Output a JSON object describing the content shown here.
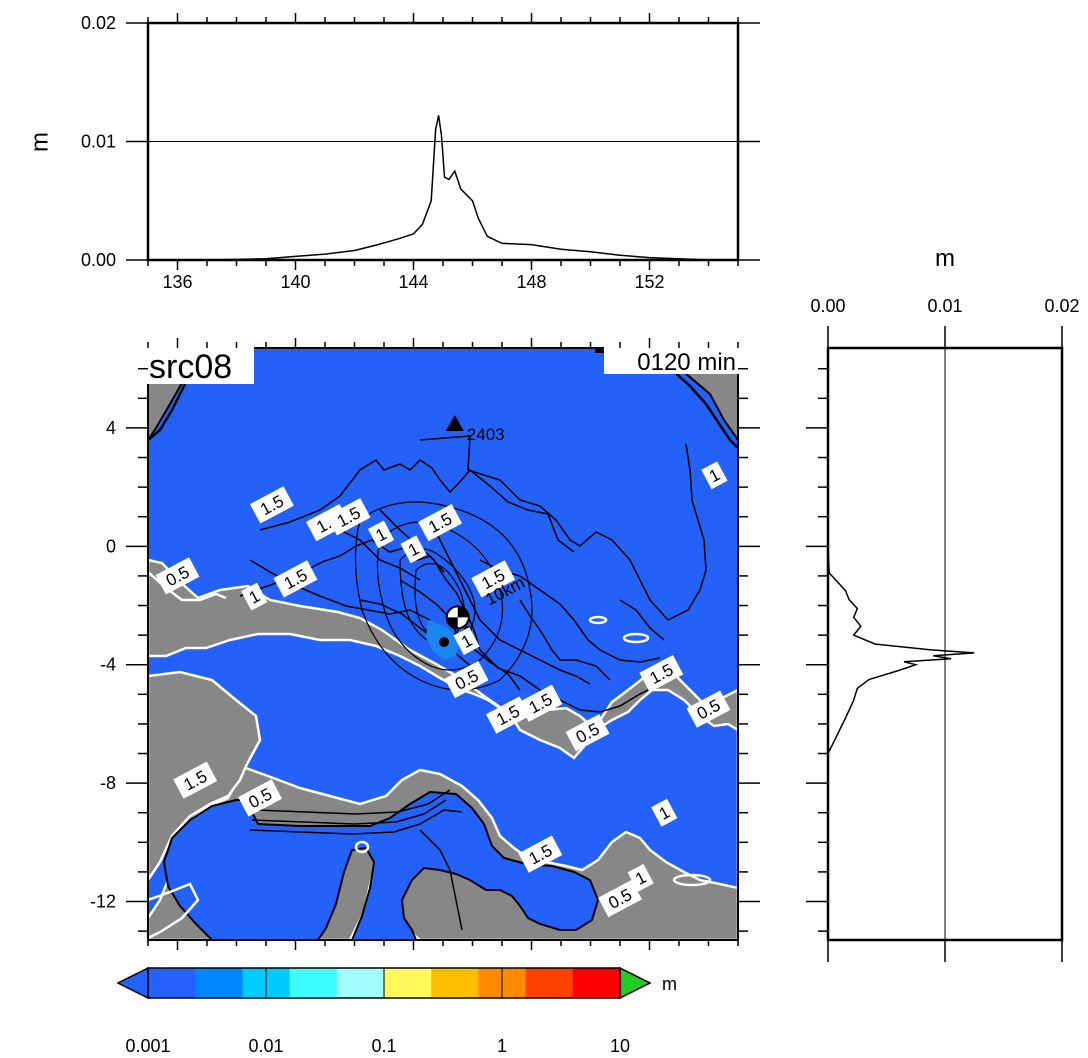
{
  "chart_data": [
    {
      "type": "line",
      "panel": "top-profile",
      "ylabel": "m",
      "xlim": [
        135,
        155
      ],
      "ylim": [
        0,
        0.02
      ],
      "x_ticks": [
        {
          "value": 136,
          "label": "136"
        },
        {
          "value": 140,
          "label": "140"
        },
        {
          "value": 144,
          "label": "144"
        },
        {
          "value": 148,
          "label": "148"
        },
        {
          "value": 152,
          "label": "152"
        }
      ],
      "y_ticks": [
        {
          "value": 0.0,
          "label": "0.00"
        },
        {
          "value": 0.01,
          "label": "0.01"
        },
        {
          "value": 0.02,
          "label": "0.02"
        }
      ],
      "gridline_y": 0.01,
      "series": [
        {
          "x": [
            135,
            137,
            139,
            140,
            141,
            142,
            142.8,
            143.5,
            144.0,
            144.3,
            144.6,
            144.75,
            144.85,
            144.95,
            145.05,
            145.2,
            145.4,
            145.6,
            145.8,
            146.0,
            146.2,
            146.5,
            147.0,
            148.0,
            149.0,
            150.0,
            151.0,
            152.0,
            153.0,
            154.0,
            155.0
          ],
          "y": [
            0.0,
            0.0,
            0.0001,
            0.0003,
            0.0005,
            0.0008,
            0.0013,
            0.0018,
            0.0022,
            0.003,
            0.005,
            0.011,
            0.0122,
            0.0105,
            0.007,
            0.0068,
            0.0075,
            0.006,
            0.0055,
            0.005,
            0.0035,
            0.002,
            0.0014,
            0.0013,
            0.0009,
            0.0007,
            0.0004,
            0.0002,
            0.0001,
            0.0,
            0.0
          ]
        }
      ]
    },
    {
      "type": "heatmap",
      "panel": "map",
      "title": "src08",
      "time_label": "0120 min",
      "xlim": [
        135,
        155
      ],
      "ylim": [
        -13.3,
        6.7
      ],
      "x_ticks": [],
      "y_ticks": [
        {
          "value": 4,
          "label": "4"
        },
        {
          "value": 0,
          "label": "0"
        },
        {
          "value": -4,
          "label": "-4"
        },
        {
          "value": -8,
          "label": "-8"
        },
        {
          "value": -12,
          "label": "-12"
        }
      ],
      "station": {
        "name": "2403",
        "lon": 145.4,
        "lat": 4.1
      },
      "epicenter": {
        "lon": 145.5,
        "lat": -2.4,
        "depth_label": "10km"
      },
      "contour_labels": [
        {
          "text": "1",
          "lon": 154.2,
          "lat": 2.4
        },
        {
          "text": "1.5",
          "lon": 139.2,
          "lat": 1.4
        },
        {
          "text": "1.5",
          "lon": 141.1,
          "lat": 0.8
        },
        {
          "text": "1.5",
          "lon": 141.8,
          "lat": 1.0
        },
        {
          "text": "1",
          "lon": 142.9,
          "lat": 0.4
        },
        {
          "text": "1",
          "lon": 144.0,
          "lat": -0.1
        },
        {
          "text": "1.5",
          "lon": 144.9,
          "lat": 0.8
        },
        {
          "text": "0.5",
          "lon": 136.0,
          "lat": -1.0
        },
        {
          "text": "1.5",
          "lon": 140.0,
          "lat": -1.1
        },
        {
          "text": "1",
          "lon": 138.6,
          "lat": -1.7
        },
        {
          "text": "1.5",
          "lon": 146.7,
          "lat": -1.1
        },
        {
          "text": "10km",
          "lon": 147.1,
          "lat": -1.5
        },
        {
          "text": "1",
          "lon": 145.8,
          "lat": -3.2
        },
        {
          "text": "0.5",
          "lon": 145.8,
          "lat": -4.5
        },
        {
          "text": "1.5",
          "lon": 147.2,
          "lat": -5.7
        },
        {
          "text": "1.5",
          "lon": 148.3,
          "lat": -5.3
        },
        {
          "text": "0.5",
          "lon": 149.9,
          "lat": -6.3
        },
        {
          "text": "1.5",
          "lon": 152.4,
          "lat": -4.3
        },
        {
          "text": "0.5",
          "lon": 154.0,
          "lat": -5.5
        },
        {
          "text": "1.5",
          "lon": 136.6,
          "lat": -7.9
        },
        {
          "text": "0.5",
          "lon": 138.8,
          "lat": -8.5
        },
        {
          "text": "1",
          "lon": 152.5,
          "lat": -9.0
        },
        {
          "text": "1.5",
          "lon": 148.3,
          "lat": -10.4
        },
        {
          "text": "1",
          "lon": 151.7,
          "lat": -11.2
        },
        {
          "text": "0.5",
          "lon": 151.0,
          "lat": -11.9
        }
      ]
    },
    {
      "type": "line",
      "panel": "right-profile",
      "xlabel": "m",
      "xlim": [
        0,
        0.02
      ],
      "ylim": [
        -13.3,
        6.7
      ],
      "x_ticks": [
        {
          "value": 0.0,
          "label": "0.00"
        },
        {
          "value": 0.01,
          "label": "0.01"
        },
        {
          "value": 0.02,
          "label": "0.02"
        }
      ],
      "gridline_x": 0.01,
      "series": [
        {
          "y": [
            6.7,
            0,
            -0.9,
            -1.2,
            -1.5,
            -1.8,
            -2.1,
            -2.4,
            -2.7,
            -3.0,
            -3.3,
            -3.5,
            -3.6,
            -3.7,
            -3.8,
            -3.9,
            -4.0,
            -4.2,
            -4.5,
            -4.8,
            -5.2,
            -5.8,
            -6.6,
            -7.0,
            -13.3
          ],
          "x": [
            0.0,
            0.0,
            0.0001,
            0.0008,
            0.0015,
            0.0018,
            0.0025,
            0.0022,
            0.0028,
            0.0022,
            0.004,
            0.0088,
            0.0125,
            0.009,
            0.0105,
            0.0065,
            0.0075,
            0.006,
            0.0035,
            0.0025,
            0.0022,
            0.0015,
            0.0005,
            0.0,
            0.0
          ]
        }
      ]
    },
    {
      "type": "colorbar",
      "panel": "legend",
      "unit": "m",
      "scale": "log",
      "tick_labels": [
        "0.001",
        "0.01",
        "0.1",
        "1",
        "10"
      ],
      "colors": [
        "#2561ff",
        "#0087ff",
        "#00cbff",
        "#3dfcff",
        "#a2fdff",
        "#fff85a",
        "#fbbe00",
        "#ff8a00",
        "#ff4000",
        "#ff0000"
      ],
      "under_color": "#2561ff",
      "over_color": "#22cc22"
    }
  ],
  "colors": {
    "water": "#2361f8",
    "land": "#878787",
    "shallow": "#1a86f0"
  }
}
